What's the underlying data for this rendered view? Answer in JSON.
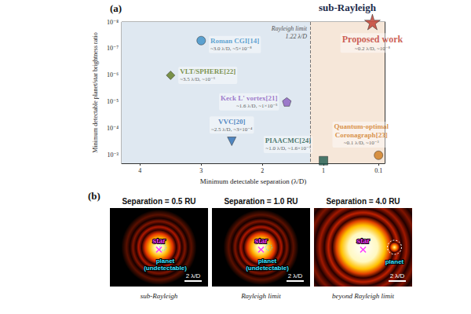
{
  "chart_data": {
    "type": "scatter",
    "panel_label": "(a)",
    "title": "sub-Rayleigh",
    "xlabel": "Minimum detectable separation (λ/D)",
    "ylabel": "Minimum detectable planet/star brightness ratio",
    "xlim": [
      4.3,
      0
    ],
    "xticks": [
      4,
      3,
      2,
      1,
      0.1
    ],
    "ylim": [
      0.002,
      1e-08
    ],
    "yticks": [
      {
        "value": 1e-08,
        "label": "10⁻⁸"
      },
      {
        "value": 1e-07,
        "label": "10⁻⁷"
      },
      {
        "value": 1e-06,
        "label": "10⁻⁶"
      },
      {
        "value": 1e-05,
        "label": "10⁻⁵"
      },
      {
        "value": 0.0001,
        "label": "10⁻⁴"
      },
      {
        "value": 0.001,
        "label": "10⁻³"
      }
    ],
    "log": "y",
    "grid": false,
    "rayleigh_limit": {
      "x": 1.22,
      "label": "Rayleigh limit",
      "value_label": "1.22 λ/D"
    },
    "series": [
      {
        "name": "Roman CGI[14]",
        "annotation": "~3.0 λ/D, ~5×10⁻⁸",
        "x": [
          3.0
        ],
        "values": [
          5e-08
        ],
        "color": "#3a8fc8",
        "marker": "circle"
      },
      {
        "name": "VLT/SPHERE[22]",
        "annotation": "~3.5 λ/D, ~10⁻⁶",
        "x": [
          3.5
        ],
        "values": [
          1e-06
        ],
        "color": "#5f7a1e",
        "marker": "diamond"
      },
      {
        "name": "Keck L' vortex[21]",
        "annotation": "~1.6 λ/D, ~1×10⁻⁵",
        "x": [
          1.6
        ],
        "values": [
          1e-05
        ],
        "color": "#8a5cc0",
        "marker": "pentagon"
      },
      {
        "name": "VVC[20]",
        "annotation": "~2.5 λ/D, ~3×10⁻⁴",
        "x": [
          2.5
        ],
        "values": [
          0.0003
        ],
        "color": "#2a6db5",
        "marker": "triangle-down"
      },
      {
        "name": "PIAACMC[24]",
        "annotation": "~1.0 λ/D, ~1.6×10⁻³",
        "x": [
          1.0
        ],
        "values": [
          0.0016
        ],
        "color": "#1d5a4c",
        "marker": "square"
      },
      {
        "name": "Quantum-optimal Coronagraph[23]",
        "annotation": "~0.1 λ/D, ~10⁻³",
        "x": [
          0.1
        ],
        "values": [
          0.001
        ],
        "color": "#d07a1a",
        "marker": "circle"
      },
      {
        "name": "Proposed work",
        "annotation": "~0.2 λ/D, ~10⁻⁸",
        "x": [
          0.2
        ],
        "values": [
          1e-08
        ],
        "color": "#c0392b",
        "marker": "star"
      }
    ]
  },
  "panel_b": {
    "label": "(b)",
    "images": [
      {
        "title": "Separation = 0.5 RU",
        "separation": 0.5,
        "star_label": "star",
        "planet_label": "planet (undetectable)",
        "scale_bar": "2 λ/D",
        "caption": "sub-Rayleigh"
      },
      {
        "title": "Separation = 1.0 RU",
        "separation": 1.0,
        "star_label": "star",
        "planet_label": "planet (undetectable)",
        "scale_bar": "2 λ/D",
        "caption": "Rayleigh limit"
      },
      {
        "title": "Separation = 4.0 RU",
        "separation": 4.0,
        "star_label": "star",
        "planet_label": "planet",
        "scale_bar": "2 λ/D",
        "caption": "beyond Rayleigh limit"
      }
    ]
  }
}
